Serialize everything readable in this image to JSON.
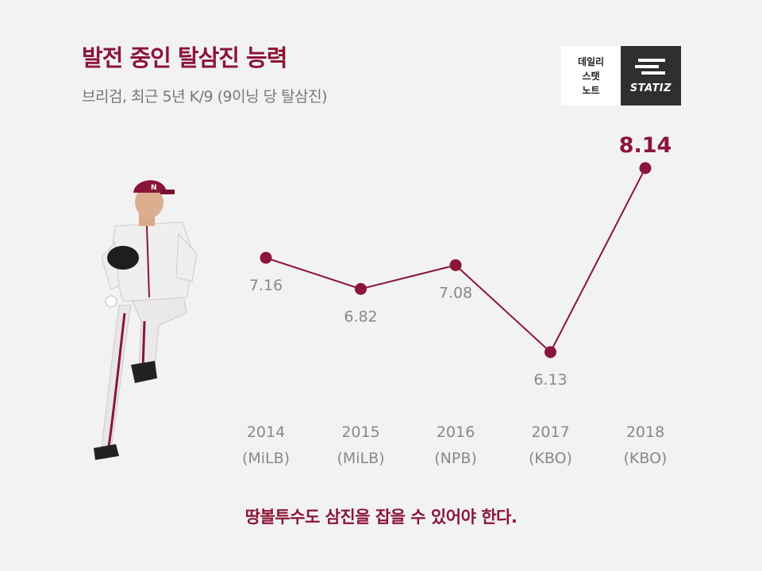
{
  "header": {
    "title": "발전 중인 탈삼진 능력",
    "subtitle": "브리검, 최근 5년 K/9 (9이닝 당 탈삼진)"
  },
  "logo": {
    "lines": [
      "데일리",
      "스탯",
      "노트"
    ],
    "brand": "STATIZ"
  },
  "player_image": {
    "icon": "baseball-pitcher-image"
  },
  "colors": {
    "accent": "#8b1538",
    "label": "#888888",
    "background": "#f2f2f2"
  },
  "chart_data": {
    "type": "line",
    "categories": [
      "2014",
      "2015",
      "2016",
      "2017",
      "2018"
    ],
    "subcategories": [
      "(MiLB)",
      "(MiLB)",
      "(NPB)",
      "(KBO)",
      "(KBO)"
    ],
    "series": [
      {
        "values": [
          7.16,
          6.82,
          7.08,
          6.13,
          8.14
        ]
      }
    ],
    "data_labels": [
      "7.16",
      "6.82",
      "7.08",
      "6.13",
      "8.14"
    ],
    "highlight_index": 4,
    "grid": false,
    "legend": "none"
  },
  "footer": {
    "text": "땅볼투수도 삼진을 잡을 수 있어야 한다."
  }
}
